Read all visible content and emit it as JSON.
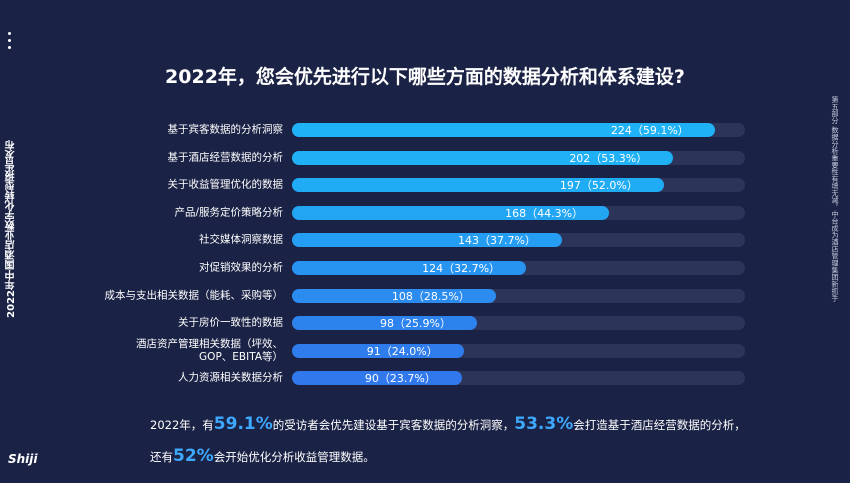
{
  "chart_data": {
    "type": "bar",
    "title": "2022年，您会优先进行以下哪些方面的数据分析和体系建设?",
    "categories": [
      "基于宾客数据的分析洞察",
      "基于酒店经营数据的分析",
      "关于收益管理优化的数据",
      "产品/服务定价策略分析",
      "社交媒体洞察数据",
      "对促销效果的分析",
      "成本与支出相关数据（能耗、采购等）",
      "关于房价一致性的数据",
      "酒店资产管理相关数据（坪效、\nGOP、EBITA等）",
      "人力资源相关数据分析"
    ],
    "values": [
      224,
      202,
      197,
      168,
      143,
      124,
      108,
      98,
      91,
      90
    ],
    "value_labels": [
      "224（59.1%）",
      "202（53.3%）",
      "197（52.0%）",
      "168（44.3%）",
      "143（37.7%）",
      "124（32.7%）",
      "108（28.5%）",
      "98（25.9%）",
      "91（24.0%）",
      "90（23.7%）"
    ],
    "colors": [
      "#1fb2f6",
      "#1fb0f6",
      "#20acf5",
      "#22a6f4",
      "#259df2",
      "#2894f1",
      "#2b8bef",
      "#2d83ee",
      "#2f7ded",
      "#3178ec"
    ],
    "track_color": "#2c3459",
    "xlim": [
      0,
      240
    ],
    "summary": [
      [
        {
          "text": "2022年，有",
          "emphasis": false
        },
        {
          "text": "59.1%",
          "emphasis": true
        },
        {
          "text": "的受访者会优先建设基于宾客数据的分析洞察，",
          "emphasis": false
        },
        {
          "text": "53.3%",
          "emphasis": true
        },
        {
          "text": "会打造基于酒店经营数据的分析，",
          "emphasis": false
        }
      ],
      [
        {
          "text": "还有",
          "emphasis": false
        },
        {
          "text": "52%",
          "emphasis": true
        },
        {
          "text": "会开始优化分析收益管理数据。",
          "emphasis": false
        }
      ]
    ]
  },
  "side_left": "2022年中国酒店业数字化转型报告发布",
  "side_right": "第五部分  数据分析重要性有增无减，中台成为酒店管理集团新抓手",
  "logo": "Shiji"
}
